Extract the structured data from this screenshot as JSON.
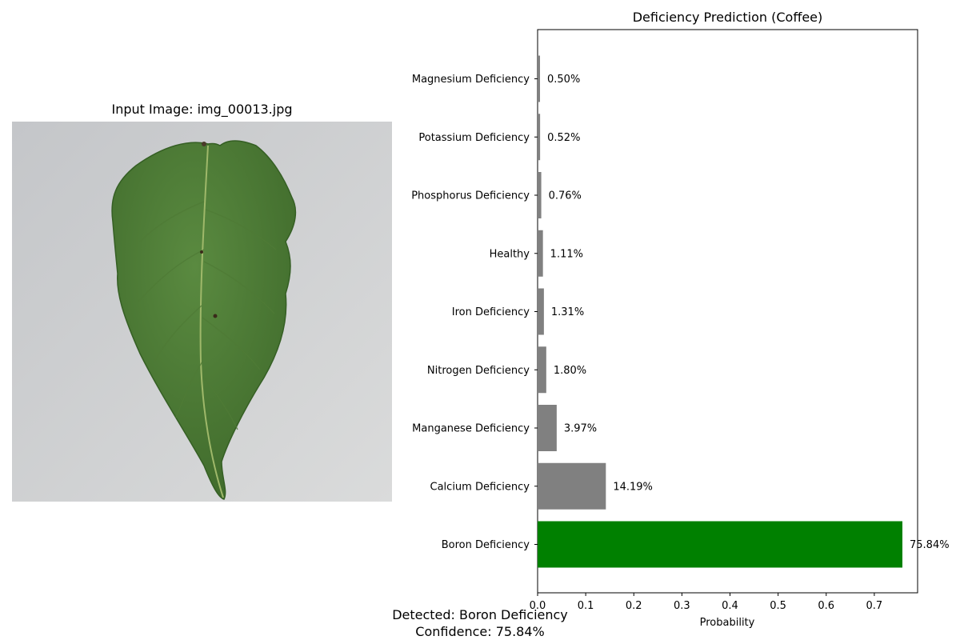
{
  "left_panel": {
    "title": "Input Image: img_00013.jpg",
    "image_icon": "coffee-leaf-photo"
  },
  "footer": {
    "detected": "Detected: Boron Deficiency",
    "confidence": "Confidence: 75.84%"
  },
  "chart_data": {
    "type": "bar",
    "orientation": "horizontal",
    "title": "Deficiency Prediction (Coffee)",
    "xlabel": "Probability",
    "ylabel": "",
    "xlim": [
      0,
      0.79
    ],
    "xticks": [
      "0.0",
      "0.1",
      "0.2",
      "0.3",
      "0.4",
      "0.5",
      "0.6",
      "0.7"
    ],
    "categories": [
      "Boron Deficiency",
      "Calcium Deficiency",
      "Manganese Deficiency",
      "Nitrogen Deficiency",
      "Iron Deficiency",
      "Healthy",
      "Phosphorus Deficiency",
      "Potassium Deficiency",
      "Magnesium Deficiency"
    ],
    "values": [
      0.7584,
      0.1419,
      0.0397,
      0.018,
      0.0131,
      0.0111,
      0.0076,
      0.0052,
      0.005
    ],
    "value_labels": [
      "75.84%",
      "14.19%",
      "3.97%",
      "1.80%",
      "1.31%",
      "1.11%",
      "0.76%",
      "0.52%",
      "0.50%"
    ],
    "colors": [
      "#008000",
      "#808080",
      "#808080",
      "#808080",
      "#808080",
      "#808080",
      "#808080",
      "#808080",
      "#808080"
    ],
    "grid": false,
    "legend": "none"
  }
}
